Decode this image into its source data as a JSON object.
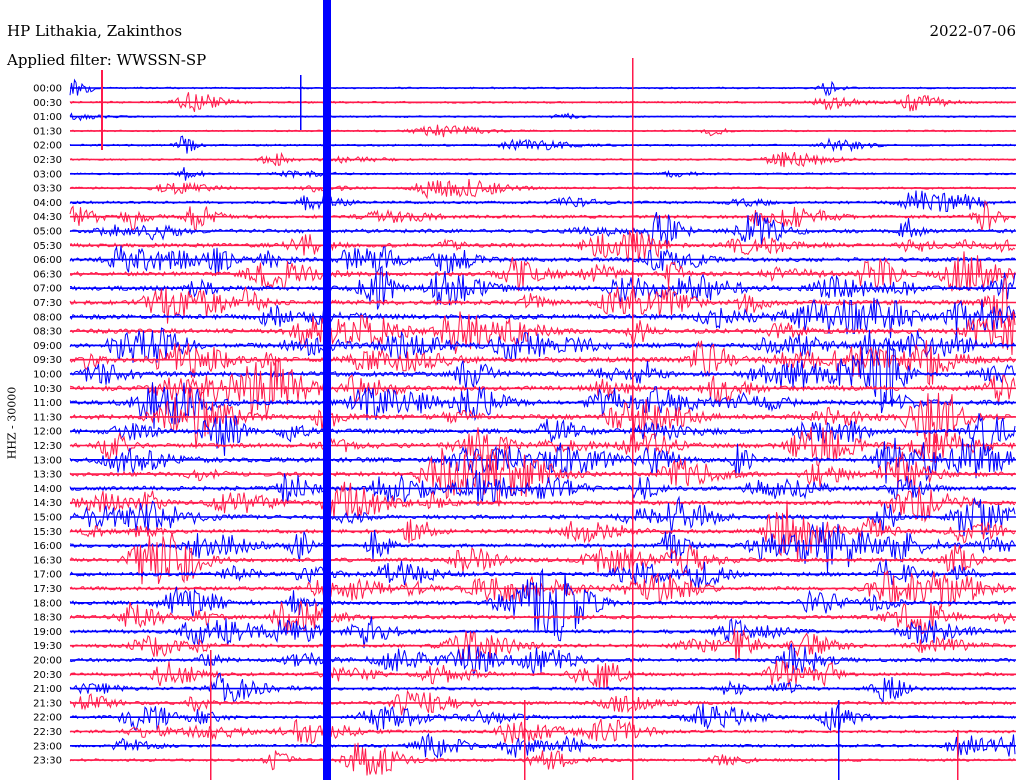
{
  "header": {
    "station": "HP Lithakia, Zakinthos",
    "date": "2022-07-06",
    "filter_label": "Applied filter: WWSSN-SP"
  },
  "chart_data": {
    "type": "line",
    "subtype": "helicorder",
    "ylabel": "HHZ - 30000",
    "colors": [
      "#0000ff",
      "#ff1a4b"
    ],
    "row_labels": [
      "00:00",
      "00:30",
      "01:00",
      "01:30",
      "02:00",
      "02:30",
      "03:00",
      "03:30",
      "04:00",
      "04:30",
      "05:00",
      "05:30",
      "06:00",
      "06:30",
      "07:00",
      "07:30",
      "08:00",
      "08:30",
      "09:00",
      "09:30",
      "10:00",
      "10:30",
      "11:00",
      "11:30",
      "12:00",
      "12:30",
      "13:00",
      "13:30",
      "14:00",
      "14:30",
      "15:00",
      "15:30",
      "16:00",
      "16:30",
      "17:00",
      "17:30",
      "18:00",
      "18:30",
      "19:00",
      "19:30",
      "20:00",
      "20:30",
      "21:00",
      "21:30",
      "22:00",
      "22:30",
      "23:00",
      "23:30"
    ],
    "activity_level": [
      0.4,
      0.7,
      0.4,
      0.4,
      0.6,
      0.5,
      0.6,
      1.0,
      1.4,
      2.0,
      2.4,
      2.6,
      2.8,
      3.0,
      3.2,
      3.4,
      3.4,
      3.3,
      3.4,
      3.6,
      3.7,
      3.6,
      3.5,
      3.4,
      3.3,
      3.2,
      3.2,
      3.1,
      3.0,
      2.9,
      2.8,
      2.7,
      2.6,
      2.6,
      2.6,
      2.5,
      2.5,
      2.4,
      2.3,
      2.2,
      2.1,
      2.0,
      1.9,
      1.8,
      1.7,
      1.6,
      1.5,
      1.4
    ],
    "grid": false,
    "legend": "none"
  }
}
